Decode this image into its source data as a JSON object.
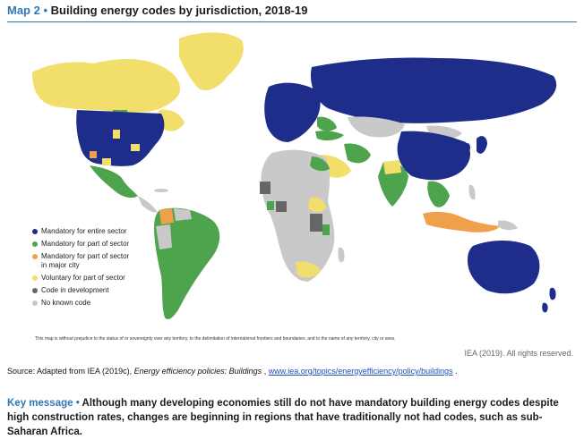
{
  "title": {
    "prefix": "Map 2 •",
    "main": "Building energy codes by jurisdiction, 2018-19"
  },
  "legend": [
    {
      "label": "Mandatory for entire sector",
      "color": "#1f2d8a"
    },
    {
      "label": "Mandatory for part of sector",
      "color": "#4ea34d"
    },
    {
      "label": "Mandatory for part of sector\nin major city",
      "color": "#f0a04a"
    },
    {
      "label": "Voluntary for part of sector",
      "color": "#f2de6a"
    },
    {
      "label": "Code in development",
      "color": "#666666"
    },
    {
      "label": "No known code",
      "color": "#c9c9c9"
    }
  ],
  "disclaimer": "This map is without prejudice to the status of or sovereignty over any territory, to the delimitation of international frontiers and boundaries, and to the name of any territory, city or area.",
  "rights": "IEA (2019). All rights reserved.",
  "source": {
    "prefix": "Source: Adapted from IEA (2019c), ",
    "italic": "Energy efficiency policies: Buildings",
    "middle": ", ",
    "link": "www.iea.org/topics/energyefficiency/policy/buildings",
    "suffix": "."
  },
  "key_message": {
    "label": "Key message •",
    "text": " Although many developing economies still do not have mandatory building energy codes despite high construction rates, changes are beginning in regions that have traditionally not had codes, such as sub-Saharan Africa."
  }
}
